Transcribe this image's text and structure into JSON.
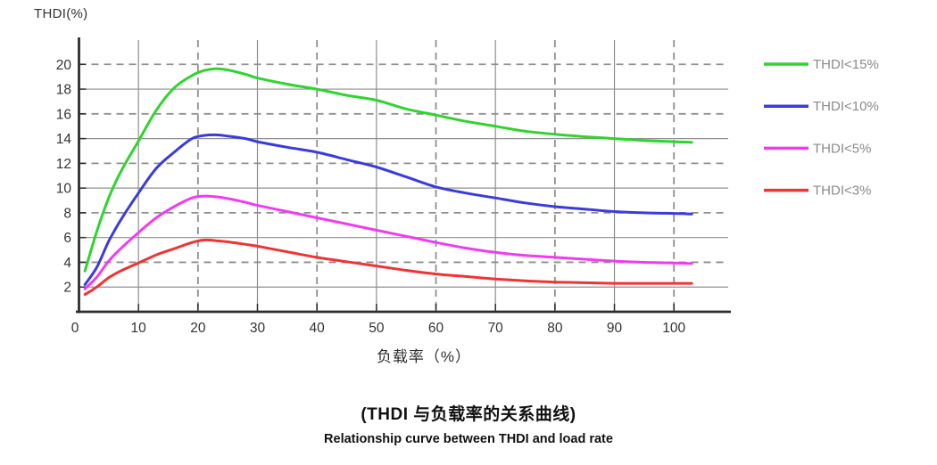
{
  "figure": {
    "y_axis_title": "THDI(%)",
    "x_axis_title": "负载率（%）",
    "caption_zh": "(THDI 与负载率的关系曲线)",
    "caption_en": "Relationship curve between THDI and load rate"
  },
  "chart_data": {
    "type": "line",
    "title": "(THDI 与负载率的关系曲线)",
    "subtitle": "Relationship curve between THDI and load rate",
    "xlabel": "负载率（%）",
    "ylabel": "THDI(%)",
    "xlim": [
      0,
      110
    ],
    "ylim": [
      0,
      21
    ],
    "x_ticks": [
      0,
      10,
      20,
      30,
      40,
      50,
      60,
      70,
      80,
      90,
      100
    ],
    "y_ticks": [
      2,
      4,
      6,
      8,
      10,
      12,
      14,
      16,
      18,
      20
    ],
    "grid": "on, alternating: solid at x=10,30,50,70,90 and y=2,6,10,14,18; dashed at x=20,40,60,80,100 and y=4,8,12,16,20",
    "legend_position": "right",
    "colors": {
      "axis": "#2d2d2d",
      "grid": "#8f8f8f",
      "tick_label": "#333333",
      "legend_text": "#8a8a8a"
    },
    "series": [
      {
        "name": "THDI<15%",
        "color": "#2fd42f",
        "points": [
          [
            1,
            3.3
          ],
          [
            3,
            6.5
          ],
          [
            5,
            9.2
          ],
          [
            7,
            11.3
          ],
          [
            10,
            13.8
          ],
          [
            13,
            16.3
          ],
          [
            16,
            18.1
          ],
          [
            19,
            19.1
          ],
          [
            21,
            19.5
          ],
          [
            23,
            19.65
          ],
          [
            25,
            19.55
          ],
          [
            28,
            19.2
          ],
          [
            30,
            18.9
          ],
          [
            35,
            18.4
          ],
          [
            40,
            18.0
          ],
          [
            45,
            17.5
          ],
          [
            50,
            17.1
          ],
          [
            55,
            16.4
          ],
          [
            60,
            15.9
          ],
          [
            65,
            15.4
          ],
          [
            70,
            15.0
          ],
          [
            75,
            14.6
          ],
          [
            80,
            14.35
          ],
          [
            85,
            14.15
          ],
          [
            90,
            14.0
          ],
          [
            95,
            13.85
          ],
          [
            100,
            13.75
          ],
          [
            103,
            13.7
          ]
        ]
      },
      {
        "name": "THDI<10%",
        "color": "#3b3bdc",
        "points": [
          [
            1,
            2.2
          ],
          [
            3,
            3.6
          ],
          [
            5,
            5.7
          ],
          [
            7,
            7.4
          ],
          [
            10,
            9.6
          ],
          [
            13,
            11.6
          ],
          [
            16,
            12.9
          ],
          [
            19,
            14.0
          ],
          [
            21,
            14.25
          ],
          [
            23,
            14.3
          ],
          [
            25,
            14.2
          ],
          [
            28,
            14.0
          ],
          [
            30,
            13.75
          ],
          [
            35,
            13.3
          ],
          [
            40,
            12.9
          ],
          [
            45,
            12.3
          ],
          [
            50,
            11.7
          ],
          [
            55,
            10.9
          ],
          [
            60,
            10.1
          ],
          [
            65,
            9.6
          ],
          [
            70,
            9.2
          ],
          [
            75,
            8.8
          ],
          [
            80,
            8.5
          ],
          [
            85,
            8.3
          ],
          [
            90,
            8.1
          ],
          [
            95,
            8.0
          ],
          [
            100,
            7.95
          ],
          [
            103,
            7.9
          ]
        ]
      },
      {
        "name": "THDI<5%",
        "color": "#f03cf0",
        "points": [
          [
            1,
            1.85
          ],
          [
            3,
            2.8
          ],
          [
            5,
            4.1
          ],
          [
            7,
            5.1
          ],
          [
            10,
            6.4
          ],
          [
            13,
            7.6
          ],
          [
            16,
            8.5
          ],
          [
            19,
            9.2
          ],
          [
            21,
            9.35
          ],
          [
            23,
            9.3
          ],
          [
            25,
            9.15
          ],
          [
            28,
            8.85
          ],
          [
            30,
            8.6
          ],
          [
            35,
            8.1
          ],
          [
            40,
            7.6
          ],
          [
            45,
            7.1
          ],
          [
            50,
            6.6
          ],
          [
            55,
            6.1
          ],
          [
            60,
            5.6
          ],
          [
            65,
            5.15
          ],
          [
            70,
            4.8
          ],
          [
            75,
            4.55
          ],
          [
            80,
            4.4
          ],
          [
            85,
            4.25
          ],
          [
            90,
            4.1
          ],
          [
            95,
            4.0
          ],
          [
            100,
            3.95
          ],
          [
            103,
            3.9
          ]
        ]
      },
      {
        "name": "THDI<3%",
        "color": "#ee3434",
        "points": [
          [
            1,
            1.4
          ],
          [
            3,
            2.0
          ],
          [
            5,
            2.75
          ],
          [
            7,
            3.3
          ],
          [
            10,
            3.95
          ],
          [
            13,
            4.6
          ],
          [
            16,
            5.1
          ],
          [
            19,
            5.6
          ],
          [
            21,
            5.8
          ],
          [
            23,
            5.75
          ],
          [
            25,
            5.65
          ],
          [
            28,
            5.45
          ],
          [
            30,
            5.3
          ],
          [
            35,
            4.85
          ],
          [
            40,
            4.4
          ],
          [
            45,
            4.05
          ],
          [
            50,
            3.7
          ],
          [
            55,
            3.35
          ],
          [
            60,
            3.05
          ],
          [
            65,
            2.85
          ],
          [
            70,
            2.65
          ],
          [
            75,
            2.5
          ],
          [
            80,
            2.4
          ],
          [
            85,
            2.35
          ],
          [
            90,
            2.3
          ],
          [
            95,
            2.3
          ],
          [
            100,
            2.3
          ],
          [
            103,
            2.3
          ]
        ]
      }
    ]
  }
}
